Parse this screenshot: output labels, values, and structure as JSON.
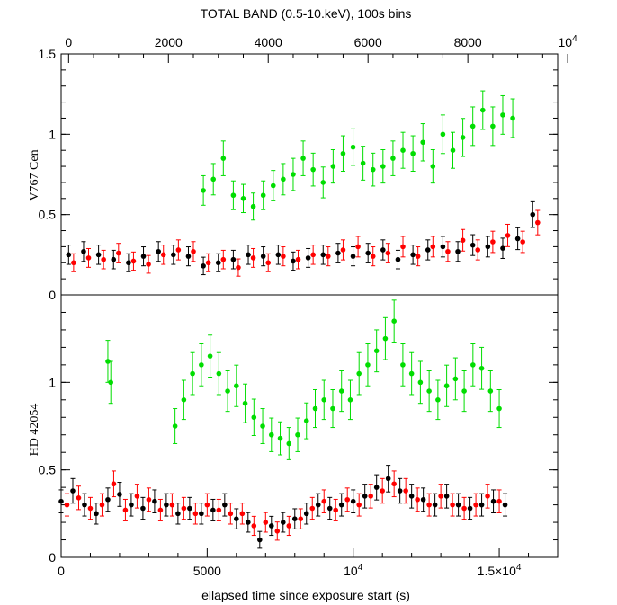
{
  "figure": {
    "top_title": "TOTAL BAND (0.5-10.keV), 100s bins",
    "bottom_xlabel": "ellapsed time since exposure start (s)"
  },
  "colors": {
    "black": "#000000",
    "red": "#ff0000",
    "green": "#00dd00"
  },
  "chart_data": [
    {
      "type": "scatter",
      "panel": "top",
      "ylabel": "V767 Cen",
      "x_axis_top_ticks": [
        "0",
        "2000",
        "4000",
        "6000",
        "8000",
        "10^4"
      ],
      "xlim": [
        -150,
        9800
      ],
      "ylim": [
        0,
        1.5
      ],
      "y_ticks": [
        "0",
        "0.5",
        "1",
        "1.5"
      ],
      "error_bars": true,
      "series": [
        {
          "color": "black",
          "x": [
            0,
            300,
            600,
            900,
            1200,
            1500,
            1800,
            2100,
            2400,
            2700,
            3000,
            3300,
            3600,
            3900,
            4200,
            4500,
            4800,
            5100,
            5400,
            5700,
            6000,
            6300,
            6600,
            6900,
            7200,
            7500,
            7800,
            8100,
            8400,
            8700,
            9000,
            9300
          ],
          "y": [
            0.25,
            0.27,
            0.25,
            0.22,
            0.2,
            0.24,
            0.27,
            0.25,
            0.24,
            0.18,
            0.2,
            0.22,
            0.25,
            0.24,
            0.25,
            0.21,
            0.23,
            0.25,
            0.26,
            0.24,
            0.26,
            0.28,
            0.22,
            0.25,
            0.28,
            0.3,
            0.27,
            0.31,
            0.3,
            0.29,
            0.35,
            0.5
          ]
        },
        {
          "color": "red",
          "x": [
            100,
            400,
            700,
            1000,
            1300,
            1600,
            1900,
            2200,
            2500,
            2800,
            3100,
            3400,
            3700,
            4000,
            4300,
            4600,
            4900,
            5200,
            5500,
            5800,
            6100,
            6400,
            6700,
            7000,
            7300,
            7600,
            7900,
            8200,
            8500,
            8800,
            9100,
            9400
          ],
          "y": [
            0.2,
            0.23,
            0.22,
            0.26,
            0.21,
            0.19,
            0.25,
            0.28,
            0.27,
            0.2,
            0.22,
            0.17,
            0.23,
            0.2,
            0.24,
            0.22,
            0.25,
            0.24,
            0.28,
            0.3,
            0.24,
            0.26,
            0.3,
            0.24,
            0.3,
            0.27,
            0.34,
            0.28,
            0.33,
            0.37,
            0.33,
            0.45
          ]
        },
        {
          "color": "green",
          "x": [
            2700,
            2900,
            3100,
            3300,
            3500,
            3700,
            3900,
            4100,
            4300,
            4500,
            4700,
            4900,
            5100,
            5300,
            5500,
            5700,
            5900,
            6100,
            6300,
            6500,
            6700,
            6900,
            7100,
            7300,
            7500,
            7700,
            7900,
            8100,
            8300,
            8500,
            8700,
            8900
          ],
          "y": [
            0.65,
            0.72,
            0.85,
            0.62,
            0.6,
            0.55,
            0.62,
            0.68,
            0.72,
            0.75,
            0.85,
            0.78,
            0.7,
            0.8,
            0.88,
            0.92,
            0.82,
            0.78,
            0.8,
            0.85,
            0.9,
            0.88,
            0.95,
            0.8,
            1.0,
            0.9,
            0.98,
            1.05,
            1.15,
            1.05,
            1.12,
            1.1
          ]
        }
      ]
    },
    {
      "type": "scatter",
      "panel": "bottom",
      "ylabel": "HD 42054",
      "x_axis_bottom_ticks": [
        "0",
        "5000",
        "10^4",
        "1.5×10^4"
      ],
      "xlim": [
        0,
        17000
      ],
      "ylim": [
        0,
        1.5
      ],
      "y_ticks": [
        "0",
        "0.5",
        "1"
      ],
      "error_bars": true,
      "series": [
        {
          "color": "black",
          "x": [
            0,
            400,
            800,
            1200,
            1600,
            2000,
            2400,
            2800,
            3200,
            3600,
            4000,
            4400,
            4800,
            5200,
            5600,
            6000,
            6400,
            6800,
            7200,
            7600,
            8000,
            8400,
            8800,
            9200,
            9600,
            10000,
            10400,
            10800,
            11200,
            11600,
            12000,
            12400,
            12800,
            13200,
            13600,
            14000,
            14400,
            14800,
            15200
          ],
          "y": [
            0.32,
            0.38,
            0.3,
            0.25,
            0.33,
            0.36,
            0.3,
            0.28,
            0.32,
            0.3,
            0.25,
            0.28,
            0.25,
            0.27,
            0.3,
            0.22,
            0.2,
            0.1,
            0.18,
            0.2,
            0.22,
            0.25,
            0.3,
            0.28,
            0.3,
            0.32,
            0.35,
            0.4,
            0.45,
            0.38,
            0.35,
            0.33,
            0.3,
            0.35,
            0.3,
            0.28,
            0.3,
            0.32,
            0.3
          ]
        },
        {
          "color": "red",
          "x": [
            200,
            600,
            1000,
            1400,
            1800,
            2200,
            2600,
            3000,
            3400,
            3800,
            4200,
            4600,
            5000,
            5400,
            5800,
            6200,
            6600,
            7000,
            7400,
            7800,
            8200,
            8600,
            9000,
            9400,
            9800,
            10200,
            10600,
            11000,
            11400,
            11800,
            12200,
            12600,
            13000,
            13400,
            13800,
            14200,
            14600,
            15000
          ],
          "y": [
            0.3,
            0.34,
            0.28,
            0.3,
            0.42,
            0.27,
            0.35,
            0.33,
            0.27,
            0.3,
            0.28,
            0.25,
            0.3,
            0.27,
            0.25,
            0.25,
            0.18,
            0.2,
            0.15,
            0.18,
            0.22,
            0.28,
            0.32,
            0.27,
            0.33,
            0.3,
            0.35,
            0.38,
            0.42,
            0.38,
            0.33,
            0.3,
            0.35,
            0.3,
            0.28,
            0.3,
            0.35,
            0.32
          ]
        },
        {
          "color": "green",
          "x": [
            1600,
            1700,
            3900,
            4200,
            4500,
            4800,
            5100,
            5400,
            5700,
            6000,
            6300,
            6600,
            6900,
            7200,
            7500,
            7800,
            8100,
            8400,
            8700,
            9000,
            9300,
            9600,
            9900,
            10200,
            10500,
            10800,
            11100,
            11400,
            11700,
            12000,
            12300,
            12600,
            12900,
            13200,
            13500,
            13800,
            14100,
            14400,
            14700,
            15000
          ],
          "y": [
            1.12,
            1.0,
            0.75,
            0.9,
            1.05,
            1.1,
            1.15,
            1.05,
            0.95,
            0.98,
            0.88,
            0.8,
            0.75,
            0.7,
            0.68,
            0.65,
            0.7,
            0.78,
            0.85,
            0.9,
            0.85,
            0.95,
            0.9,
            1.05,
            1.1,
            1.18,
            1.25,
            1.35,
            1.1,
            1.05,
            1.0,
            0.95,
            0.9,
            0.98,
            1.02,
            0.95,
            1.1,
            1.08,
            0.95,
            0.85
          ]
        }
      ]
    }
  ]
}
